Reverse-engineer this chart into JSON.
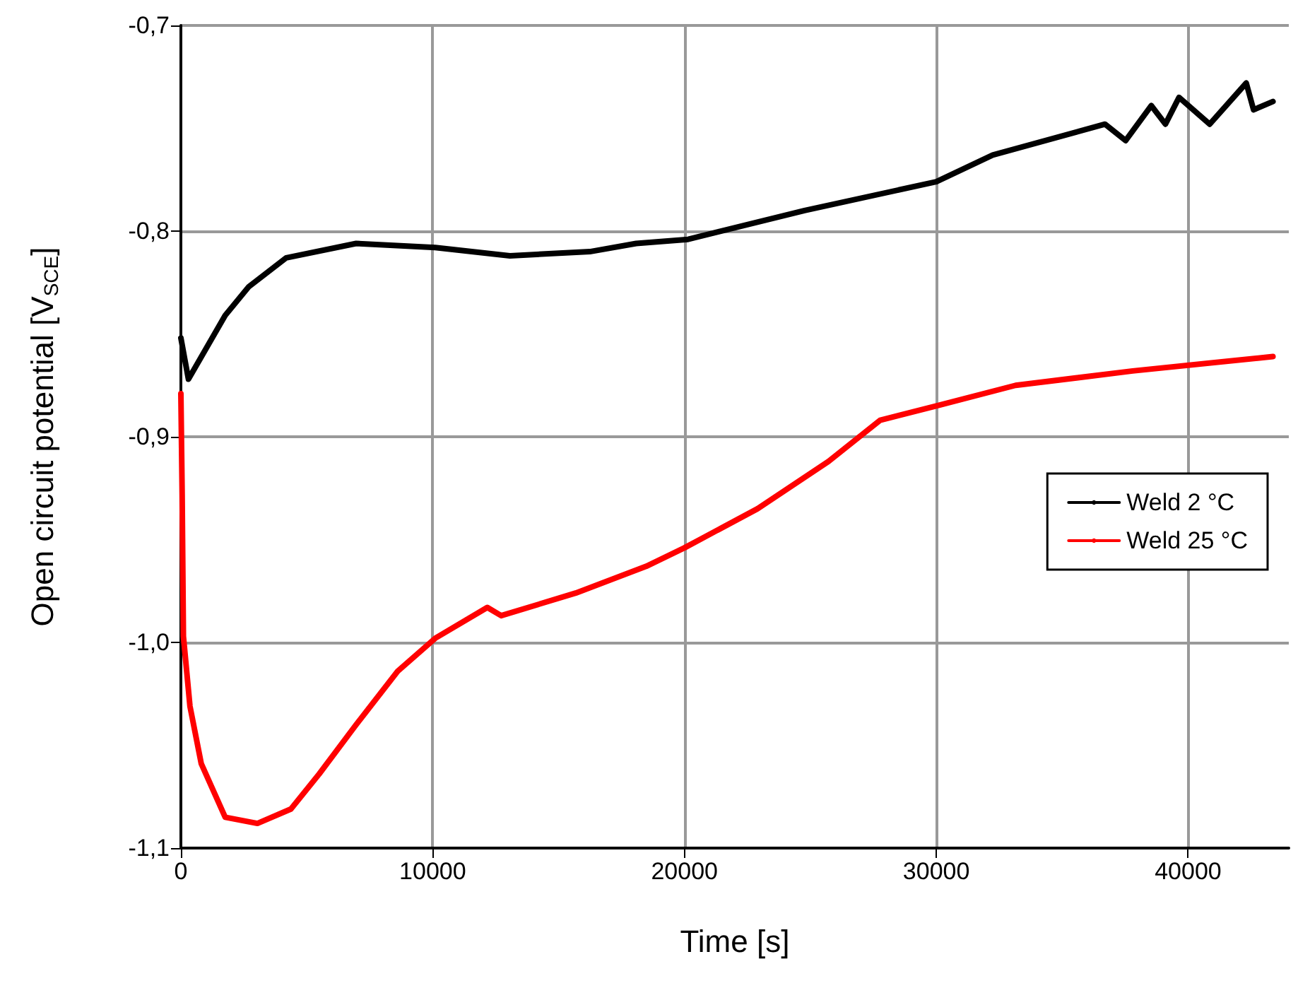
{
  "chart_data": {
    "type": "line",
    "xlabel": "Time [s]",
    "ylabel": "Open circuit potential [V$_{SCE}$]",
    "xlim": [
      0,
      44000
    ],
    "xticks": [
      0,
      10000,
      20000,
      30000,
      40000
    ],
    "ylim": [
      -1.1,
      -0.7
    ],
    "yticks": [
      {
        "value": -1.1,
        "label": "-1,1"
      },
      {
        "value": -1.0,
        "label": "-1,0"
      },
      {
        "value": -0.9,
        "label": "-0,9"
      },
      {
        "value": -0.8,
        "label": "-0,8"
      },
      {
        "value": -0.7,
        "label": "-0,7"
      }
    ],
    "grid": true,
    "legend": "right",
    "marker": "none",
    "line_style": "solid",
    "series": [
      {
        "name": "Weld 2 °C",
        "color": "#000000",
        "x": [
          0,
          300,
          1760,
          2700,
          4180,
          6960,
          10100,
          13070,
          16240,
          18080,
          20140,
          24770,
          30000,
          32240,
          36700,
          37520,
          38540,
          39100,
          39640,
          40860,
          42310,
          42600,
          43370
        ],
        "values": [
          -0.852,
          -0.872,
          -0.841,
          -0.827,
          -0.813,
          -0.806,
          -0.808,
          -0.812,
          -0.81,
          -0.806,
          -0.804,
          -0.79,
          -0.776,
          -0.763,
          -0.748,
          -0.756,
          -0.739,
          -0.748,
          -0.735,
          -0.748,
          -0.728,
          -0.741,
          -0.737
        ]
      },
      {
        "name": "Weld 25 °C",
        "color": "#ff0000",
        "x": [
          0,
          50,
          100,
          360,
          810,
          1760,
          3040,
          4370,
          5490,
          6960,
          8610,
          10100,
          12170,
          12720,
          15680,
          18480,
          20000,
          22900,
          25720,
          27770,
          30000,
          33150,
          37800,
          43370
        ],
        "values": [
          -0.879,
          -0.928,
          -0.997,
          -1.031,
          -1.059,
          -1.085,
          -1.088,
          -1.081,
          -1.064,
          -1.04,
          -1.014,
          -0.998,
          -0.983,
          -0.987,
          -0.976,
          -0.963,
          -0.954,
          -0.935,
          -0.912,
          -0.892,
          -0.885,
          -0.875,
          -0.868,
          -0.861
        ]
      }
    ]
  }
}
